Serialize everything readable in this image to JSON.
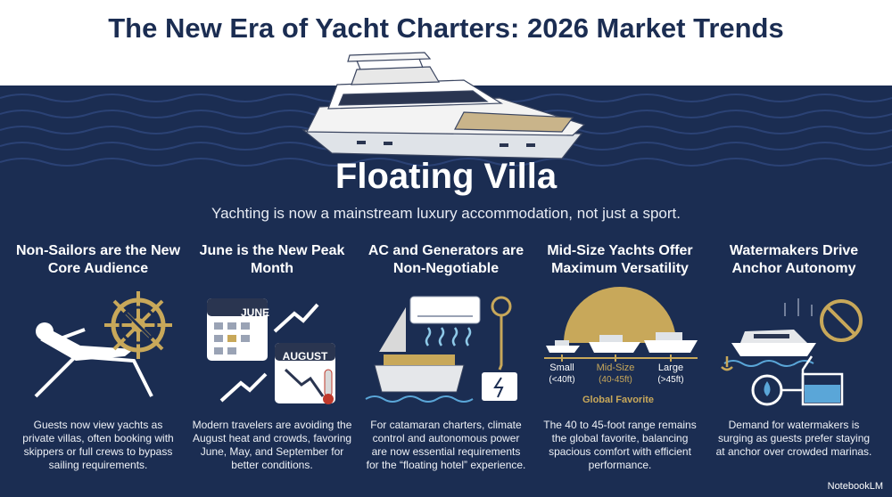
{
  "header": {
    "title": "The New Era of Yacht Charters: 2026 Market Trends"
  },
  "hero": {
    "heading": "Floating Villa",
    "subtitle": "Yachting is now a mainstream luxury accommodation, not just a sport."
  },
  "columns": [
    {
      "heading": "Non-Sailors are the New Core Audience",
      "body": "Guests now view yachts as private villas, often booking with skippers or full crews to bypass sailing requirements."
    },
    {
      "heading": "June is the New Peak Month",
      "body": "Modern travelers are avoiding the August heat and crowds, favoring June, May, and September for better conditions.",
      "labels": [
        "JUNE",
        "AUGUST"
      ]
    },
    {
      "heading": "AC and Generators are Non-Negotiable",
      "body": "For catamaran charters, climate control and autonomous power are now essential requirements for the “floating hotel” experience."
    },
    {
      "heading": "Mid-Size Yachts Offer Maximum Versatility",
      "body": "The 40 to 45-foot range remains the global favorite, balancing spacious comfort with efficient performance.",
      "sizes": [
        {
          "name": "Small",
          "range": "(<40ft)"
        },
        {
          "name": "Mid-Size",
          "range": "(40-45ft)"
        },
        {
          "name": "Large",
          "range": "(>45ft)"
        }
      ],
      "caption": "Global Favorite"
    },
    {
      "heading": "Watermakers Drive Anchor Autonomy",
      "body": "Demand for watermakers is surging as guests prefer staying at anchor over crowded marinas."
    }
  ],
  "footer": {
    "brand": "NotebookLM"
  }
}
